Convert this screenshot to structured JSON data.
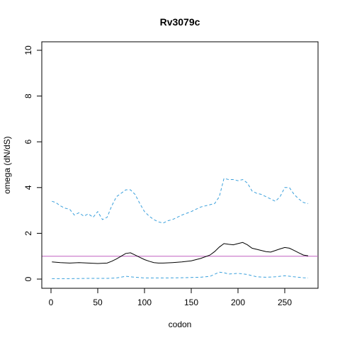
{
  "chart_data": {
    "type": "line",
    "title": "Rv3079c",
    "xlabel": "codon",
    "ylabel": "omega (dN/dS)",
    "xlim": [
      0,
      275
    ],
    "ylim": [
      0,
      10
    ],
    "xticks": [
      0,
      50,
      100,
      150,
      200,
      250
    ],
    "yticks": [
      0,
      2,
      4,
      6,
      8,
      10
    ],
    "grid": false,
    "reference_line": {
      "y": 1,
      "color": "#c060c0"
    },
    "series": [
      {
        "style": "solid",
        "color": "#000000",
        "x": [
          1,
          10,
          20,
          30,
          40,
          50,
          60,
          65,
          70,
          75,
          80,
          85,
          90,
          95,
          100,
          105,
          110,
          115,
          120,
          130,
          140,
          150,
          160,
          170,
          175,
          180,
          185,
          190,
          195,
          200,
          205,
          210,
          215,
          220,
          225,
          230,
          235,
          240,
          245,
          250,
          255,
          260,
          265,
          270,
          275
        ],
        "y": [
          0.75,
          0.72,
          0.7,
          0.72,
          0.7,
          0.68,
          0.7,
          0.78,
          0.88,
          1.0,
          1.12,
          1.15,
          1.05,
          0.95,
          0.85,
          0.78,
          0.72,
          0.7,
          0.7,
          0.72,
          0.75,
          0.8,
          0.9,
          1.05,
          1.2,
          1.4,
          1.55,
          1.52,
          1.5,
          1.55,
          1.6,
          1.5,
          1.35,
          1.3,
          1.25,
          1.2,
          1.18,
          1.25,
          1.32,
          1.38,
          1.35,
          1.25,
          1.15,
          1.05,
          1.02
        ]
      },
      {
        "style": "dashed",
        "color": "#3aa0dc",
        "x": [
          1,
          5,
          10,
          15,
          20,
          25,
          30,
          35,
          40,
          45,
          50,
          55,
          60,
          65,
          70,
          75,
          80,
          85,
          90,
          95,
          100,
          105,
          110,
          115,
          120,
          125,
          130,
          140,
          150,
          160,
          170,
          175,
          180,
          185,
          190,
          195,
          200,
          205,
          210,
          215,
          220,
          225,
          230,
          235,
          240,
          245,
          250,
          255,
          260,
          265,
          270,
          275
        ],
        "y": [
          3.4,
          3.35,
          3.2,
          3.1,
          3.05,
          2.8,
          2.9,
          2.75,
          2.85,
          2.7,
          2.95,
          2.6,
          2.7,
          3.2,
          3.6,
          3.75,
          3.9,
          3.9,
          3.7,
          3.3,
          2.95,
          2.75,
          2.6,
          2.5,
          2.45,
          2.55,
          2.6,
          2.8,
          2.95,
          3.15,
          3.25,
          3.3,
          3.6,
          4.4,
          4.35,
          4.35,
          4.3,
          4.35,
          4.2,
          3.85,
          3.75,
          3.7,
          3.6,
          3.5,
          3.4,
          3.6,
          4.0,
          4.0,
          3.7,
          3.5,
          3.35,
          3.3
        ]
      },
      {
        "style": "dashed",
        "color": "#3aa0dc",
        "x": [
          1,
          20,
          40,
          60,
          70,
          80,
          90,
          100,
          120,
          140,
          160,
          170,
          180,
          185,
          190,
          200,
          210,
          220,
          230,
          240,
          250,
          260,
          270,
          275
        ],
        "y": [
          0.02,
          0.02,
          0.03,
          0.03,
          0.05,
          0.12,
          0.08,
          0.05,
          0.05,
          0.06,
          0.08,
          0.12,
          0.3,
          0.28,
          0.22,
          0.25,
          0.2,
          0.1,
          0.08,
          0.1,
          0.15,
          0.1,
          0.06,
          0.05
        ]
      }
    ]
  }
}
